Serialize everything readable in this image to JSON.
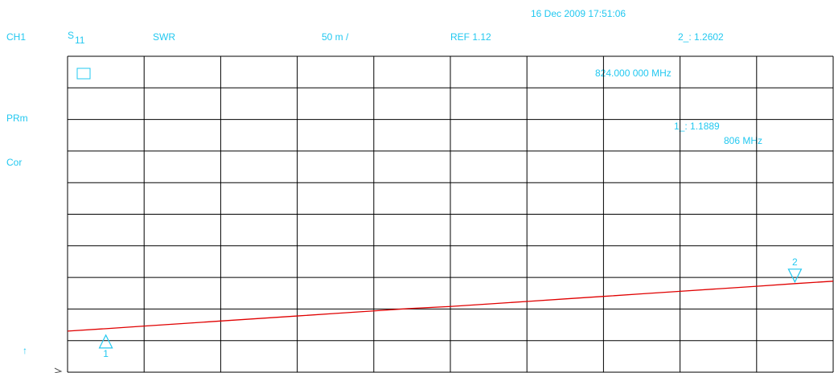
{
  "header": {
    "date": "16 Dec 2009  17:51:06",
    "channel": "CH1",
    "param": "S",
    "param_sub": "11",
    "format": "SWR",
    "scale": "50 m /",
    "ref": "REF 1.12"
  },
  "side": [
    "PRm",
    "Cor",
    "↑"
  ],
  "chart_data": {
    "type": "line",
    "color": "#e00000",
    "x": [
      805,
      806,
      807,
      808,
      809,
      810,
      811,
      812,
      813,
      814,
      815,
      816,
      817,
      818,
      819,
      820,
      821,
      822,
      823,
      824,
      825
    ],
    "values": [
      1.185,
      1.1889,
      1.193,
      1.197,
      1.201,
      1.205,
      1.209,
      1.213,
      1.217,
      1.221,
      1.224,
      1.228,
      1.232,
      1.236,
      1.24,
      1.244,
      1.248,
      1.252,
      1.256,
      1.2602,
      1.264
    ],
    "xlim": [
      805,
      825
    ],
    "ylim": [
      1.12,
      1.62
    ],
    "markers": [
      {
        "label": "1",
        "x": 806,
        "y": 1.1889,
        "readout": "1_: 1.1889",
        "freq": "806 MHz"
      },
      {
        "label": "2",
        "x": 824,
        "y": 1.2602,
        "readout": "2_: 1.2602",
        "freq": "824.000 000 MHz"
      }
    ]
  }
}
